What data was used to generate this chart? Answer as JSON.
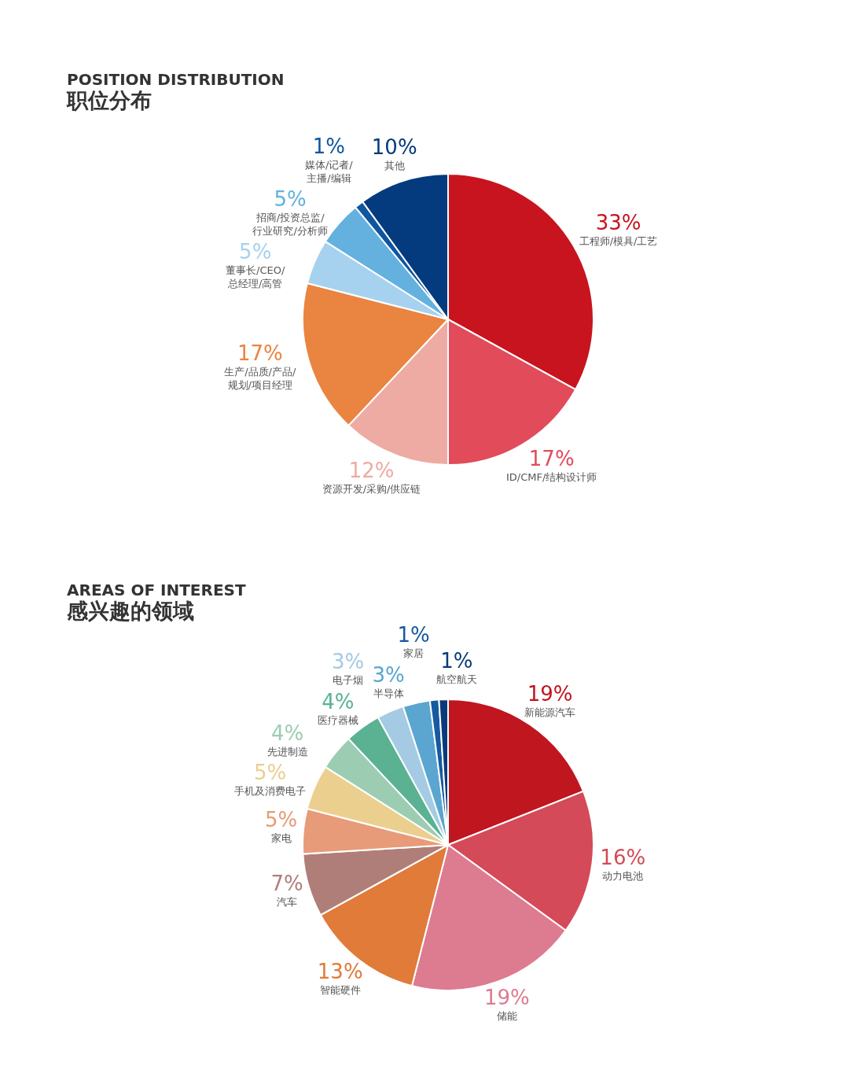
{
  "chart_data": [
    {
      "type": "pie",
      "title": "POSITION DISTRIBUTION",
      "subtitle": "职位分布",
      "categories": [
        "工程师/模具/工艺",
        "ID/CMF/结构设计师",
        "资源开发/采购/供应链",
        "生产/品质/产品/\n规划/项目经理",
        "董事长/CEO/\n总经理/高管",
        "招商/投资总监/\n行业研究/分析师",
        "媒体/记者/\n主播/编辑",
        "其他"
      ],
      "values": [
        33,
        17,
        12,
        17,
        5,
        5,
        1,
        10
      ],
      "value_labels": [
        "33%",
        "17%",
        "12%",
        "17%",
        "5%",
        "5%",
        "1%",
        "10%"
      ],
      "colors": [
        "#c8141e",
        "#e24b5a",
        "#eeaba3",
        "#ea8441",
        "#a6d2f0",
        "#64b1df",
        "#0f56a0",
        "#033b7e"
      ]
    },
    {
      "type": "pie",
      "title": "AREAS OF INTEREST",
      "subtitle": "感兴趣的领域",
      "categories": [
        "新能源汽车",
        "动力电池",
        "储能",
        "智能硬件",
        "汽车",
        "家电",
        "手机及消费电子",
        "先进制造",
        "医疗器械",
        "电子烟",
        "半导体",
        "家居",
        "航空航天"
      ],
      "values": [
        19,
        16,
        19,
        13,
        7,
        5,
        5,
        4,
        4,
        3,
        3,
        1,
        1
      ],
      "value_labels": [
        "19%",
        "16%",
        "19%",
        "13%",
        "7%",
        "5%",
        "5%",
        "4%",
        "4%",
        "3%",
        "3%",
        "1%",
        "1%"
      ],
      "colors": [
        "#c0161f",
        "#d44a58",
        "#dd7b90",
        "#e07b39",
        "#b07e78",
        "#e89b78",
        "#ebcf8f",
        "#9ccdb2",
        "#5ab292",
        "#a4cbe3",
        "#5aa6d0",
        "#165aa0",
        "#0b3a7c"
      ]
    }
  ]
}
